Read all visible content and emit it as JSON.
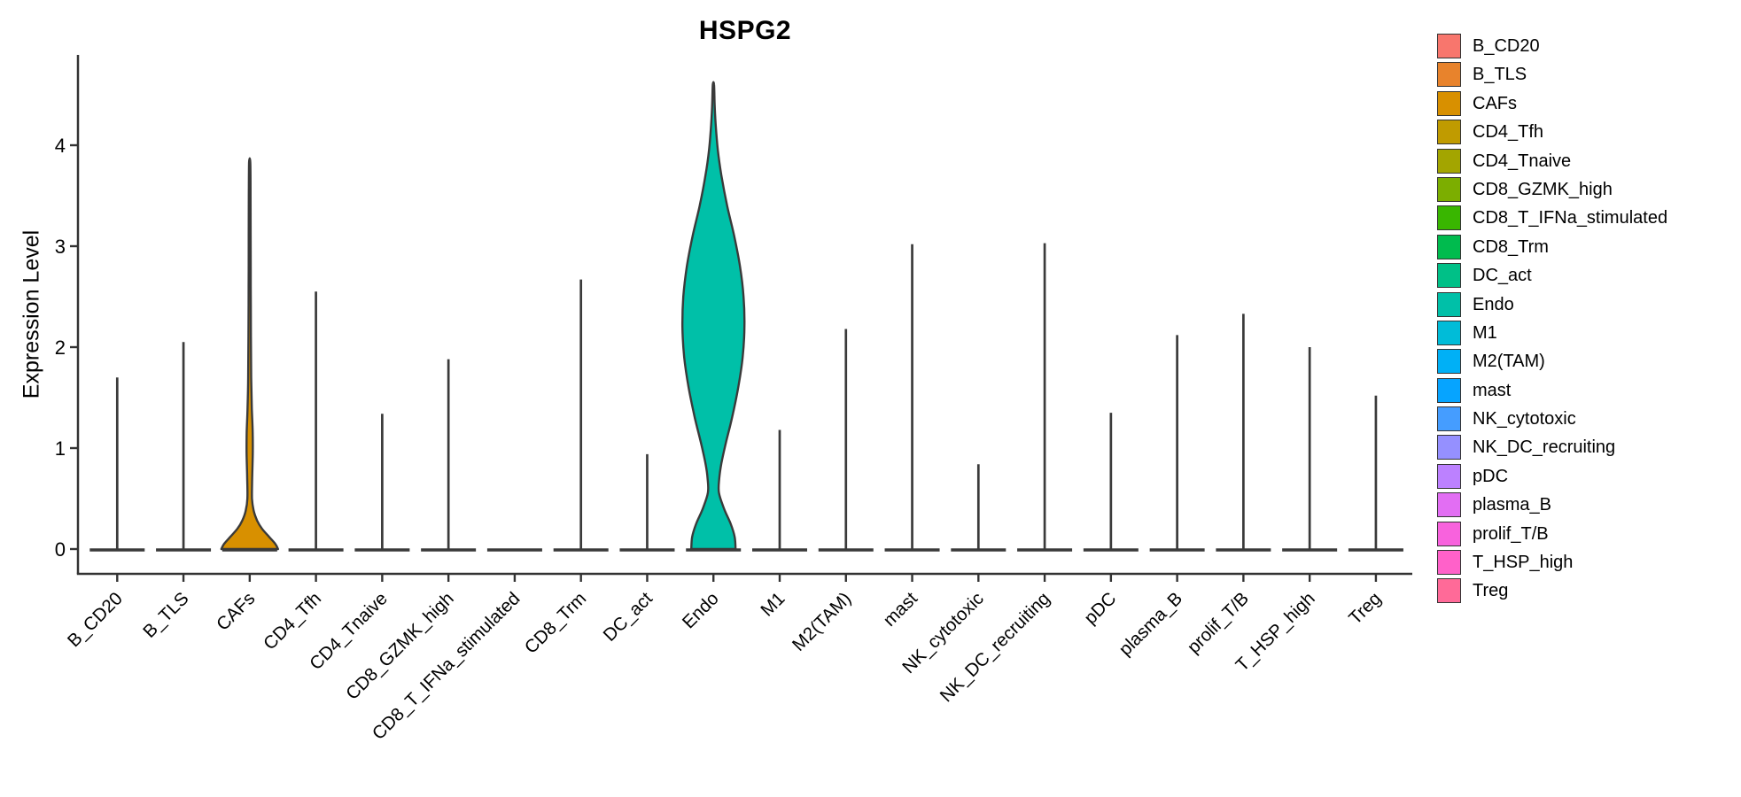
{
  "chart_data": {
    "type": "violin",
    "title": "HSPG2",
    "ylabel": "Expression Level",
    "xlabel": "",
    "ylim": [
      0,
      4.85
    ],
    "yticks": [
      "0",
      "1",
      "2",
      "3",
      "4"
    ],
    "grid": false,
    "legend_position": "right",
    "categories": [
      "B_CD20",
      "B_TLS",
      "CAFs",
      "CD4_Tfh",
      "CD4_Tnaive",
      "CD8_GZMK_high",
      "CD8_T_IFNa_stimulated",
      "CD8_Trm",
      "DC_act",
      "Endo",
      "M1",
      "M2(TAM)",
      "mast",
      "NK_cytotoxic",
      "NK_DC_recruiting",
      "pDC",
      "plasma_B",
      "prolif_T/B",
      "T_HSP_high",
      "Treg"
    ],
    "colors": [
      "#F8766D",
      "#E8832C",
      "#D89000",
      "#C09B00",
      "#A3A500",
      "#7CAE00",
      "#39B600",
      "#00BB4E",
      "#00C087",
      "#00C0A8",
      "#00BCD8",
      "#00B0F6",
      "#06A4FF",
      "#459DFF",
      "#9590FF",
      "#BC81FF",
      "#E26EF3",
      "#F862DD",
      "#FF61C9",
      "#FF6A98"
    ],
    "max_expression": [
      1.7,
      2.05,
      3.83,
      2.55,
      1.34,
      1.88,
      0.0,
      2.67,
      0.94,
      4.6,
      1.18,
      2.18,
      3.02,
      0.84,
      3.03,
      1.35,
      2.12,
      2.33,
      2.0,
      1.52
    ],
    "violin_profiles": {
      "CAFs": [
        [
          0,
          32
        ],
        [
          0.05,
          29
        ],
        [
          0.12,
          22
        ],
        [
          0.2,
          14
        ],
        [
          0.28,
          8.5
        ],
        [
          0.38,
          4.5
        ],
        [
          0.5,
          2.6
        ],
        [
          0.7,
          2.8
        ],
        [
          0.95,
          3.5
        ],
        [
          1.15,
          3.4
        ],
        [
          1.4,
          2.4
        ],
        [
          1.7,
          1.7
        ],
        [
          2.1,
          1.4
        ],
        [
          2.6,
          1.2
        ],
        [
          3.1,
          1.1
        ],
        [
          3.5,
          1.0
        ],
        [
          3.83,
          0.7
        ]
      ],
      "Endo": [
        [
          0,
          25
        ],
        [
          0.12,
          24
        ],
        [
          0.25,
          19.5
        ],
        [
          0.4,
          12
        ],
        [
          0.56,
          6.2
        ],
        [
          0.7,
          6.6
        ],
        [
          0.85,
          9
        ],
        [
          1.05,
          14
        ],
        [
          1.3,
          21
        ],
        [
          1.6,
          28
        ],
        [
          1.9,
          33
        ],
        [
          2.2,
          35
        ],
        [
          2.5,
          34
        ],
        [
          2.8,
          30
        ],
        [
          3.1,
          23.5
        ],
        [
          3.4,
          15.5
        ],
        [
          3.7,
          9
        ],
        [
          3.95,
          5
        ],
        [
          4.2,
          2.6
        ],
        [
          4.4,
          1.4
        ],
        [
          4.6,
          0.7
        ]
      ]
    },
    "outline_color": "#3A3A3A",
    "axis_color": "#333333",
    "text_color": "#000000",
    "background_color": "#FFFFFF"
  },
  "legend": {
    "items": [
      {
        "label": "B_CD20",
        "color": "#F8766D"
      },
      {
        "label": "B_TLS",
        "color": "#E8832C"
      },
      {
        "label": "CAFs",
        "color": "#D89000"
      },
      {
        "label": "CD4_Tfh",
        "color": "#C09B00"
      },
      {
        "label": "CD4_Tnaive",
        "color": "#A3A500"
      },
      {
        "label": "CD8_GZMK_high",
        "color": "#7CAE00"
      },
      {
        "label": "CD8_T_IFNa_stimulated",
        "color": "#39B600"
      },
      {
        "label": "CD8_Trm",
        "color": "#00BB4E"
      },
      {
        "label": "DC_act",
        "color": "#00C087"
      },
      {
        "label": "Endo",
        "color": "#00C0A8"
      },
      {
        "label": "M1",
        "color": "#00BCD8"
      },
      {
        "label": "M2(TAM)",
        "color": "#00B0F6"
      },
      {
        "label": "mast",
        "color": "#06A4FF"
      },
      {
        "label": "NK_cytotoxic",
        "color": "#459DFF"
      },
      {
        "label": "NK_DC_recruiting",
        "color": "#9590FF"
      },
      {
        "label": "pDC",
        "color": "#BC81FF"
      },
      {
        "label": "plasma_B",
        "color": "#E26EF3"
      },
      {
        "label": "prolif_T/B",
        "color": "#F862DD"
      },
      {
        "label": "T_HSP_high",
        "color": "#FF61C9"
      },
      {
        "label": "Treg",
        "color": "#FF6A98"
      }
    ]
  }
}
